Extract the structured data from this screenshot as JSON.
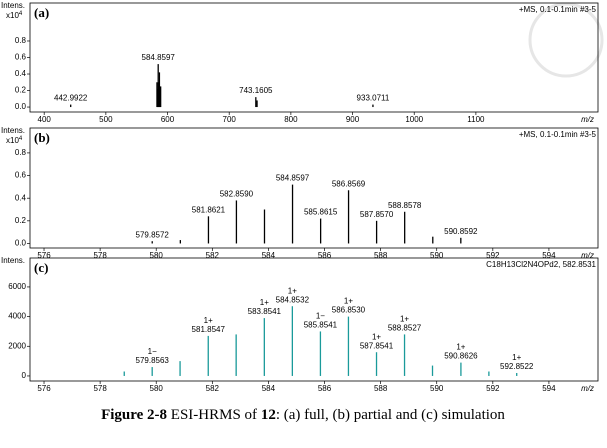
{
  "chart_data": [
    {
      "type": "bar",
      "panel": "(a)",
      "y_label": "Intens.",
      "y_multiplier": "x10",
      "y_exponent": "4",
      "header": "+MS, 0.1-0.1min #3-5",
      "x_label": "m/z",
      "color": "#000000",
      "x": [
        442.9922,
        582.86,
        583.86,
        584.8597,
        585.86,
        586.86,
        587.86,
        588.86,
        743.1605,
        745.16,
        933.0711
      ],
      "values": [
        0.03,
        0.3,
        0.22,
        0.52,
        0.3,
        0.42,
        0.2,
        0.25,
        0.12,
        0.08,
        0.03
      ],
      "peak_labels": [
        "442.9922",
        null,
        null,
        "584.8597",
        null,
        null,
        null,
        null,
        "743.1605",
        null,
        "933.0711"
      ],
      "xlim": [
        377,
        1298
      ],
      "xticks": [
        400,
        500,
        600,
        700,
        800,
        900,
        1000,
        1100
      ],
      "ylim": [
        -0.06,
        1.26
      ],
      "yticks": [
        {
          "value": 0,
          "label": "0.0"
        },
        0.2,
        0.4,
        0.6,
        0.8
      ]
    },
    {
      "type": "bar",
      "panel": "(b)",
      "y_label": "Intens.",
      "y_multiplier": "x10",
      "y_exponent": "4",
      "header": "+MS, 0.1-0.1min #3-5",
      "x_label": "m/z",
      "color": "#000000",
      "x": [
        579.8572,
        580.86,
        581.8621,
        582.859,
        583.86,
        584.8597,
        585.8615,
        586.8569,
        587.857,
        588.8578,
        589.86,
        590.8592
      ],
      "values": [
        0.02,
        0.03,
        0.24,
        0.38,
        0.3,
        0.52,
        0.22,
        0.47,
        0.2,
        0.28,
        0.06,
        0.05
      ],
      "peak_labels": [
        "579.8572",
        null,
        "581.8621",
        "582.8590",
        null,
        "584.8597",
        "585.8615",
        "586.8569",
        "587.8570",
        "588.8578",
        null,
        "590.8592"
      ],
      "xlim": [
        575.5,
        595.75
      ],
      "xticks": [
        576,
        578,
        580,
        582,
        584,
        586,
        588,
        590,
        592,
        594
      ],
      "ylim": [
        -0.04,
        1.02
      ],
      "yticks": [
        {
          "value": 0,
          "label": "0.0"
        },
        0.2,
        0.4,
        0.6,
        0.8
      ]
    },
    {
      "type": "bar",
      "panel": "(c)",
      "y_label": "Intens.",
      "header": "C18H13Cl2N4OPd2, 582.8531",
      "x_label": "m/z",
      "color": "#1a9a9a",
      "x": [
        578.86,
        579.8563,
        580.85,
        581.8547,
        582.85,
        583.8541,
        584.8532,
        585.8541,
        586.853,
        587.8541,
        588.8527,
        589.85,
        590.8626,
        591.86,
        592.8522
      ],
      "values": [
        300,
        600,
        1000,
        2700,
        2800,
        3900,
        4700,
        3000,
        4000,
        1600,
        2800,
        700,
        900,
        300,
        200
      ],
      "peak_labels": [
        null,
        "579.8563",
        null,
        "581.8547",
        null,
        "583.8541",
        "584.8532",
        "585.8541",
        "586.8530",
        "587.8541",
        "588.8527",
        null,
        "590.8626",
        null,
        "592.8522"
      ],
      "charge_labels": [
        null,
        "1−",
        null,
        "1+",
        null,
        "1+",
        "1+",
        "1−",
        "1+",
        "1+",
        "1+",
        null,
        "1+",
        null,
        "1+"
      ],
      "xlim": [
        575.5,
        595.75
      ],
      "xticks": [
        576,
        578,
        580,
        582,
        584,
        586,
        588,
        590,
        592,
        594
      ],
      "ylim": [
        -340,
        7950
      ],
      "yticks": [
        0,
        2000,
        4000,
        6000
      ]
    }
  ],
  "caption": [
    {
      "text": "Figure 2-8",
      "bold": true
    },
    {
      "text": " ESI-HRMS of ",
      "bold": false
    },
    {
      "text": "12",
      "bold": true
    },
    {
      "text": ": (a) full, (b) partial and (c) simulation",
      "bold": false
    }
  ]
}
